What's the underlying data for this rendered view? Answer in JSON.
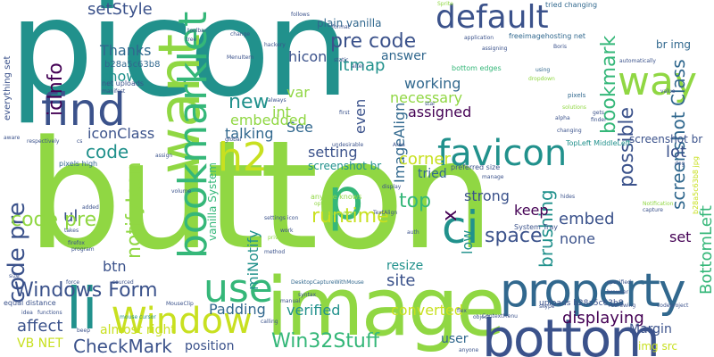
{
  "palette": {
    "purple": "#440154",
    "indigo": "#3b528b",
    "blue": "#31688e",
    "teal": "#21918c",
    "green": "#35b779",
    "lime": "#90d743",
    "yellow": "#c8e020"
  },
  "words": {
    "picon": "picon",
    "button": "button",
    "image": "image",
    "bottom": "bottom",
    "property": "property",
    "default": "default",
    "want": "want",
    "find": "find",
    "bookmarklet": "bookmarklet",
    "favicon": "favicon",
    "way": "way",
    "li": "li",
    "window": "Window",
    "use": "use",
    "p": "p",
    "ci": "ci",
    "h2": "h2",
    "windows_form": "Windows Form",
    "code_pre_1": "code pre",
    "code_pre_2": "code pre",
    "pre_code": "pre code",
    "setstyle": "setStyle",
    "hicon": "hicon",
    "bitmap": "bitmap",
    "icinfo": "icInfo",
    "thanks": "Thanks",
    "show": "show",
    "new": "new",
    "see": "See",
    "int": "int",
    "var": "var",
    "embedded": "embedded",
    "talking": "talking",
    "setting": "setting",
    "screenshot_br_1": "screenshot br",
    "screenshot_br_2": "screenshot br",
    "imagealign": "ImageAlign",
    "working": "working",
    "necessary": "necessary",
    "assigned": "assigned",
    "even": "even",
    "answer": "answer",
    "bookmark": "bookmark",
    "possible": "possible",
    "screenshot_class": "screenshot Class",
    "lot": "lot",
    "iconclass": "iconClass",
    "code": "code",
    "notifyicon": "notifyIcon",
    "runtime": "runtime",
    "top": "top",
    "x": "x",
    "keep": "keep",
    "strong": "strong",
    "brushing": "brushing",
    "embed": "embed",
    "space": "space",
    "none": "none",
    "set": "set",
    "bottomleft": "BottomLeft",
    "corner": "corner",
    "tried": "tried",
    "site": "site",
    "resize": "resize",
    "verified": "verified",
    "converted": "converted",
    "ul": "ul",
    "btn": "btn",
    "padding": "Padding",
    "almost_right": "almost right",
    "affect": "affect",
    "checkmark": "CheckMark",
    "position": "position",
    "displaying": "displaying",
    "margin": "Margin",
    "win32stuff": "Win32Stuff",
    "minotify": "miNotify",
    "vanilla_system": "vanilla System",
    "plain_vanilla": "plain vanilla",
    "br_img": "br img",
    "vb_net": "VB NET",
    "user": "user",
    "img_src": "img src",
    "low": "low",
    "b28a5c63b8_1": "b28a5c63b8 jpg",
    "b28a5c63b8_2": "b28a5c63b8",
    "everything_set": "everything set",
    "uploads_b28a5c63b8": "uploads b28a5c63b8",
    "topleft_middleleft": "TopLeft MiddleLeft",
    "freeimagehosting": "freeimagehosting net",
    "bottom_edges": "bottom edges",
    "anyone_knows": "anyone knows",
    "system_tray": "System Tray",
    "preferred_size": "preferred size",
    "tried_changing": "tried changing",
    "equal_distance": "equal distance",
    "net_uploads": "net uploads",
    "menuitem": "MenuItem",
    "pixels": "pixels",
    "pixels_high": "pixels high",
    "contextmenu": "ContextMenu",
    "desktopcapture": "DesktopCaptureWithMouse",
    "notification": "Notification",
    "mouse_cursor": "mouse cursor",
    "capture": "capture",
    "application": "application",
    "follows": "follows",
    "static": "static",
    "using": "using",
    "alpha": "alpha",
    "changing": "changing",
    "option": "option",
    "assign": "assign",
    "display": "display",
    "mybutton": "myButton",
    "syntax": "syntax",
    "manual": "manual",
    "calling": "calling",
    "object": "object",
    "flex": "flex",
    "skype": "skype",
    "hides": "hides",
    "toolbar": "toolbar",
    "tree": "tree",
    "change": "change",
    "hackery": "hackery",
    "boris": "Boris",
    "area": "Area",
    "settings_icon": "settings icon",
    "method": "method",
    "program": "program",
    "firefox": "firefox",
    "takes": "takes",
    "added": "added",
    "manifest": "manifest",
    "force": "force",
    "size": "size",
    "idea": "idea",
    "cs": "cs",
    "aware": "aware",
    "respectively": "respectively",
    "volume": "volume",
    "work": "work",
    "global": "global",
    "undesirable": "undesirable",
    "codeproject": "codeproject",
    "browser": "browser",
    "specified": "specified",
    "uploads_b28_small": "uploads b28a5c63b8 jpg",
    "deg": "deg",
    "manage": "manage",
    "automatically": "automatically",
    "value": "value",
    "always": "always",
    "first": "first",
    "alter": "alter",
    "sprite": "Sprite",
    "format": "format",
    "star": "star",
    "assigning": "assigning",
    "pixels2": "pixels",
    "gets": "gets",
    "finder": "finder",
    "dropdown": "dropdown",
    "solutions": "solutions",
    "auth": "auth",
    "private": "private",
    "textalign": "TextAlign",
    "hidden": "hidden",
    "mouseclip": "MouseClip",
    "functions": "functions",
    "sourced": "sourced",
    "beep": "beep",
    "lists": "lists",
    "redrawing": "redrawing",
    "dynamic": "dynamic",
    "anyone": "anyone"
  }
}
